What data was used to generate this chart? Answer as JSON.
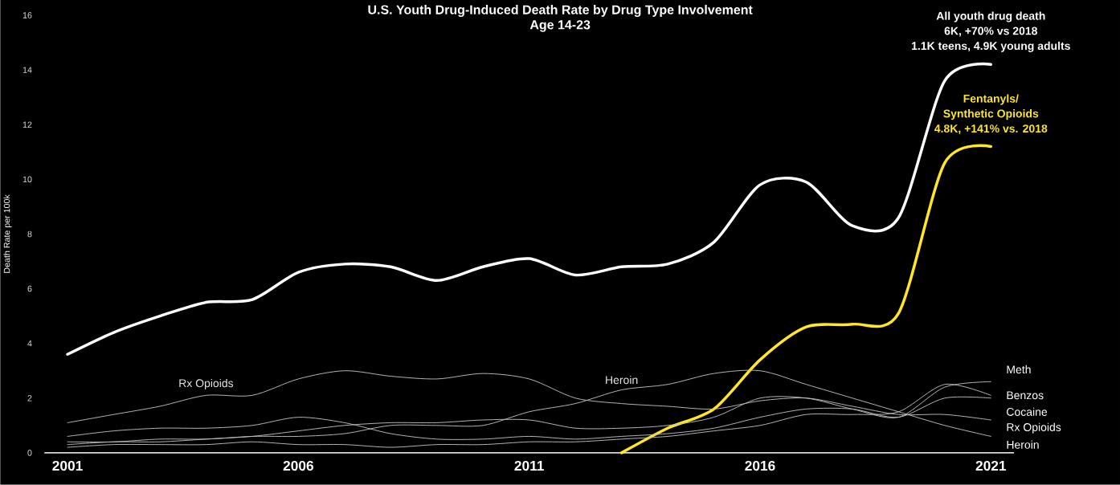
{
  "chart_data": {
    "type": "line",
    "title": "U.S. Youth Drug-Induced Death Rate by Drug Type Involvement",
    "subtitle": "Age 14-23",
    "ylabel": "Death Rate per 100k",
    "x": [
      2001,
      2002,
      2003,
      2004,
      2005,
      2006,
      2007,
      2008,
      2009,
      2010,
      2011,
      2012,
      2013,
      2014,
      2015,
      2016,
      2017,
      2018,
      2019,
      2020,
      2021
    ],
    "xlim": [
      2000.5,
      2021.5
    ],
    "xticks": [
      2001,
      2006,
      2011,
      2016,
      2021
    ],
    "ylim": [
      0,
      16
    ],
    "yticks": [
      0,
      2,
      4,
      6,
      8,
      10,
      12,
      14,
      16
    ],
    "grid": false,
    "legend": false,
    "marker": "none",
    "line_style": "solid",
    "series": [
      {
        "color": "#ffffff",
        "values": [
          3.6,
          4.4,
          5.0,
          5.5,
          5.6,
          6.6,
          6.9,
          6.8,
          6.3,
          6.8,
          7.1,
          6.5,
          6.8,
          6.9,
          7.7,
          9.8,
          9.9,
          8.3,
          8.6,
          13.6,
          14.2
        ]
      },
      {
        "color": "#ffe81f",
        "values": [
          null,
          null,
          null,
          null,
          null,
          null,
          null,
          null,
          null,
          null,
          null,
          null,
          0,
          0.9,
          1.6,
          3.4,
          4.6,
          4.7,
          5.1,
          10.6,
          11.2
        ]
      },
      {
        "name": "Meth",
        "color": "#bfbfbf",
        "values": [
          0.3,
          0.4,
          0.4,
          0.5,
          0.6,
          0.8,
          1.0,
          1.1,
          1.1,
          1.2,
          1.2,
          0.9,
          0.9,
          1.0,
          1.3,
          2.0,
          2.0,
          1.6,
          1.3,
          2.4,
          2.6
        ]
      },
      {
        "name": "Benzos",
        "color": "#bfbfbf",
        "values": [
          0.2,
          0.3,
          0.3,
          0.3,
          0.4,
          0.3,
          0.3,
          0.2,
          0.3,
          0.3,
          0.4,
          0.4,
          0.5,
          0.6,
          0.8,
          1.0,
          1.4,
          1.4,
          1.5,
          2.5,
          2.1
        ]
      },
      {
        "name": "Cocaine",
        "color": "#bfbfbf",
        "values": [
          0.6,
          0.8,
          0.9,
          0.9,
          1.0,
          1.3,
          1.1,
          0.7,
          0.5,
          0.5,
          0.6,
          0.5,
          0.6,
          0.7,
          0.9,
          1.3,
          1.6,
          1.6,
          1.3,
          2.0,
          2.0
        ]
      },
      {
        "name": "Rx Opioids",
        "color": "#bfbfbf",
        "values": [
          1.1,
          1.4,
          1.7,
          2.1,
          2.1,
          2.7,
          3.0,
          2.8,
          2.7,
          2.9,
          2.7,
          2.0,
          1.8,
          1.7,
          1.6,
          1.9,
          2.0,
          1.7,
          1.4,
          1.4,
          1.2
        ]
      },
      {
        "name": "Heroin",
        "color": "#bfbfbf",
        "values": [
          0.4,
          0.4,
          0.5,
          0.5,
          0.6,
          0.6,
          0.7,
          1.0,
          1.0,
          1.0,
          1.5,
          1.8,
          2.3,
          2.5,
          2.9,
          3.0,
          2.5,
          2.0,
          1.5,
          1.0,
          0.6
        ]
      }
    ],
    "annotations": [
      "All youth drug death",
      "6K, +70% vs 2018",
      "1.1K teens, 4.9K young adults",
      "Fentanyls/",
      "Synthetic Opioids",
      "4.8K, +141% vs. 2018",
      {
        "text": "Rx Opioids",
        "x": 2004,
        "y": 2.1
      },
      {
        "text": "Heroin",
        "x": 2013,
        "y": 2.3
      }
    ]
  }
}
